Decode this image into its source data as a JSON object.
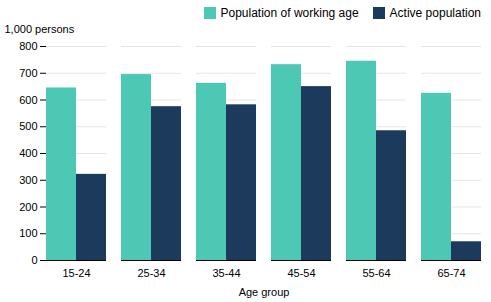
{
  "chart_data": {
    "type": "bar",
    "categories": [
      "15-24",
      "25-34",
      "35-44",
      "45-54",
      "55-64",
      "65-74"
    ],
    "series": [
      {
        "name": "Population of working age",
        "color": "#4DC8B4",
        "values": [
          645,
          695,
          662,
          732,
          745,
          625
        ]
      },
      {
        "name": "Active population",
        "color": "#1B3A5C",
        "values": [
          322,
          575,
          582,
          650,
          485,
          70
        ]
      }
    ],
    "xlabel": "Age group",
    "ylabel": "1,000 persons",
    "ylim": [
      0,
      800
    ],
    "yticks": [
      0,
      100,
      200,
      300,
      400,
      500,
      600,
      700,
      800
    ],
    "grid": true,
    "legend": "upper right"
  }
}
